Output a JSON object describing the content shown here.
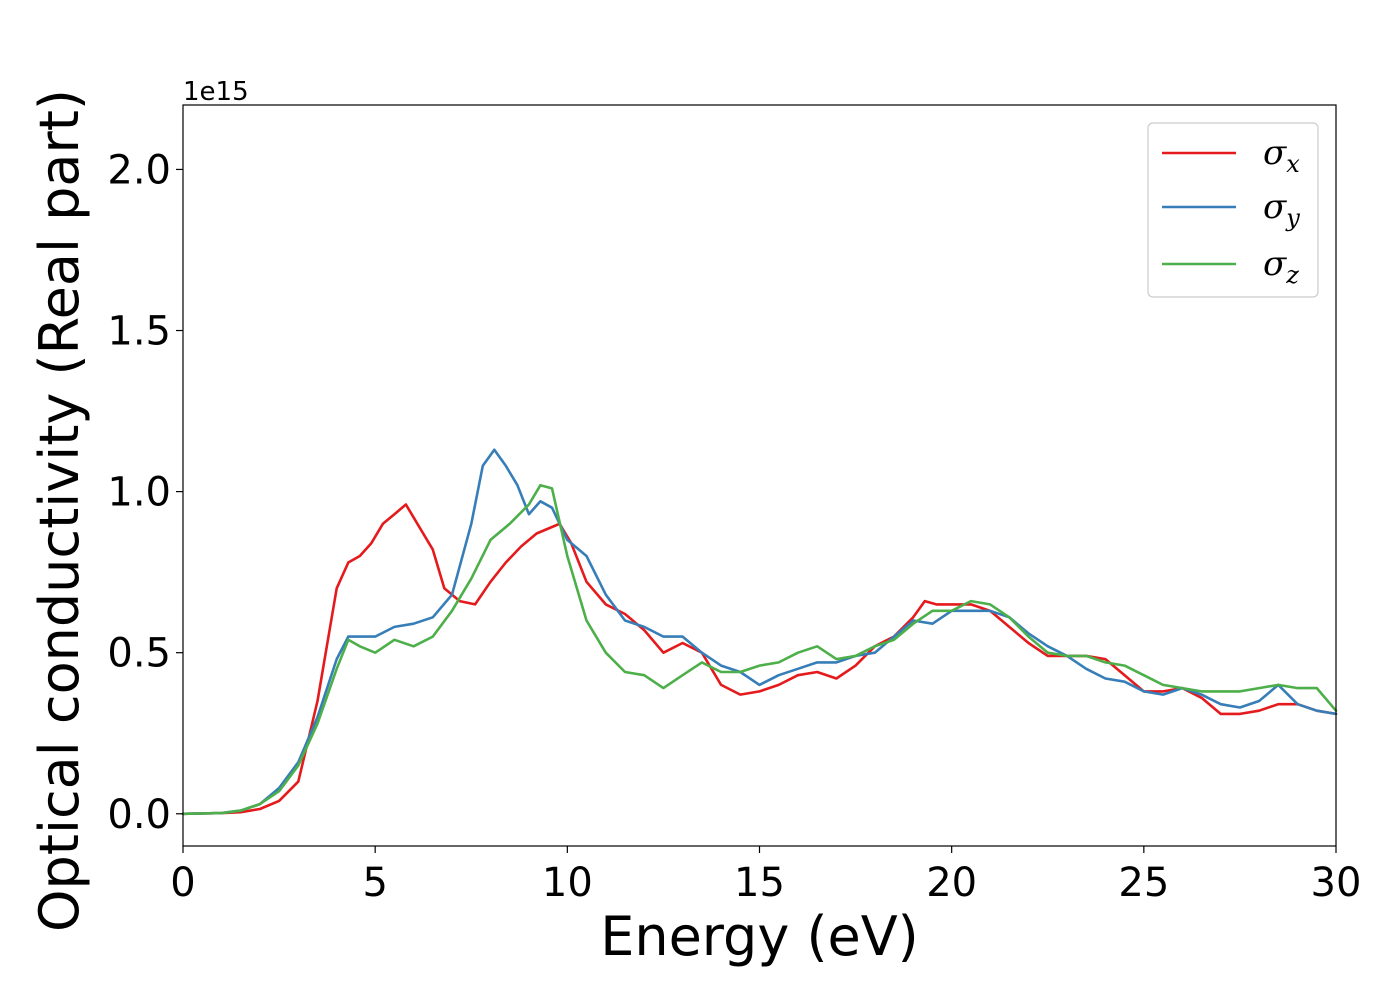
{
  "chart_data": {
    "type": "line",
    "xlabel": "Energy (eV)",
    "ylabel": "Optical conductivity (Real part)",
    "y_offset_label": "1e15",
    "xlim": [
      0,
      30
    ],
    "ylim": [
      -0.1,
      2.2
    ],
    "xticks": [
      0,
      5,
      10,
      15,
      20,
      25,
      30
    ],
    "xtick_labels": [
      "0",
      "5",
      "10",
      "15",
      "20",
      "25",
      "30"
    ],
    "yticks": [
      0.0,
      0.5,
      1.0,
      1.5,
      2.0
    ],
    "ytick_labels": [
      "0.0",
      "0.5",
      "1.0",
      "1.5",
      "2.0"
    ],
    "grid": false,
    "legend_position": "top-right",
    "series": [
      {
        "name": "σx",
        "symbol": "σ",
        "sub": "x",
        "color": "#e41a1c",
        "x": [
          0,
          1,
          1.5,
          2,
          2.5,
          3,
          3.5,
          4,
          4.3,
          4.6,
          4.9,
          5.2,
          5.5,
          5.8,
          6.1,
          6.5,
          6.8,
          7.2,
          7.6,
          8,
          8.4,
          8.8,
          9.2,
          9.6,
          9.8,
          10.1,
          10.5,
          11,
          11.5,
          12,
          12.5,
          13,
          13.5,
          14,
          14.5,
          15,
          15.5,
          16,
          16.5,
          17,
          17.5,
          18,
          18.5,
          19,
          19.3,
          19.6,
          20,
          20.5,
          21,
          21.5,
          22,
          22.5,
          23,
          23.5,
          24,
          24.5,
          25,
          25.5,
          26,
          26.5,
          27,
          27.5,
          28,
          28.5,
          29,
          29.5,
          30
        ],
        "y": [
          0,
          0.002,
          0.005,
          0.015,
          0.04,
          0.1,
          0.35,
          0.7,
          0.78,
          0.8,
          0.84,
          0.9,
          0.93,
          0.96,
          0.9,
          0.82,
          0.7,
          0.66,
          0.65,
          0.72,
          0.78,
          0.83,
          0.87,
          0.89,
          0.9,
          0.84,
          0.72,
          0.65,
          0.62,
          0.57,
          0.5,
          0.53,
          0.5,
          0.4,
          0.37,
          0.38,
          0.4,
          0.43,
          0.44,
          0.42,
          0.46,
          0.52,
          0.55,
          0.61,
          0.66,
          0.65,
          0.65,
          0.65,
          0.63,
          0.58,
          0.53,
          0.49,
          0.49,
          0.49,
          0.48,
          0.43,
          0.38,
          0.38,
          0.39,
          0.36,
          0.31,
          0.31,
          0.32,
          0.34,
          0.34,
          0.32,
          0.31
        ]
      },
      {
        "name": "σy",
        "symbol": "σ",
        "sub": "y",
        "color": "#377eb8",
        "x": [
          0,
          1,
          1.5,
          2,
          2.5,
          3,
          3.5,
          4,
          4.3,
          4.6,
          5,
          5.5,
          6,
          6.5,
          7,
          7.5,
          7.8,
          8.1,
          8.4,
          8.7,
          9,
          9.3,
          9.6,
          10,
          10.5,
          11,
          11.5,
          12,
          12.5,
          13,
          13.5,
          14,
          14.5,
          15,
          15.5,
          16,
          16.5,
          17,
          17.5,
          18,
          18.5,
          19,
          19.5,
          20,
          20.5,
          21,
          21.5,
          22,
          22.5,
          23,
          23.5,
          24,
          24.5,
          25,
          25.5,
          26,
          26.5,
          27,
          27.5,
          28,
          28.5,
          29,
          29.5,
          30
        ],
        "y": [
          0,
          0.002,
          0.01,
          0.03,
          0.08,
          0.16,
          0.3,
          0.48,
          0.55,
          0.55,
          0.55,
          0.58,
          0.59,
          0.61,
          0.68,
          0.9,
          1.08,
          1.13,
          1.08,
          1.02,
          0.93,
          0.97,
          0.95,
          0.85,
          0.8,
          0.68,
          0.6,
          0.58,
          0.55,
          0.55,
          0.5,
          0.46,
          0.44,
          0.4,
          0.43,
          0.45,
          0.47,
          0.47,
          0.49,
          0.5,
          0.55,
          0.6,
          0.59,
          0.63,
          0.63,
          0.63,
          0.61,
          0.56,
          0.52,
          0.49,
          0.45,
          0.42,
          0.41,
          0.38,
          0.37,
          0.39,
          0.37,
          0.34,
          0.33,
          0.35,
          0.4,
          0.34,
          0.32,
          0.31
        ]
      },
      {
        "name": "σz",
        "symbol": "σ",
        "sub": "z",
        "color": "#4daf4a",
        "x": [
          0,
          1,
          1.5,
          2,
          2.5,
          3,
          3.5,
          4,
          4.3,
          4.6,
          5,
          5.5,
          6,
          6.5,
          7,
          7.5,
          8,
          8.5,
          9,
          9.3,
          9.6,
          10,
          10.5,
          11,
          11.5,
          12,
          12.5,
          13,
          13.5,
          14,
          14.5,
          15,
          15.5,
          16,
          16.5,
          17,
          17.5,
          18,
          18.5,
          19,
          19.5,
          20,
          20.5,
          21,
          21.5,
          22,
          22.5,
          23,
          23.5,
          24,
          24.5,
          25,
          25.5,
          26,
          26.5,
          27,
          27.5,
          28,
          28.5,
          29,
          29.5,
          30
        ],
        "y": [
          0,
          0.002,
          0.01,
          0.03,
          0.07,
          0.15,
          0.28,
          0.45,
          0.54,
          0.52,
          0.5,
          0.54,
          0.52,
          0.55,
          0.63,
          0.73,
          0.85,
          0.9,
          0.96,
          1.02,
          1.01,
          0.8,
          0.6,
          0.5,
          0.44,
          0.43,
          0.39,
          0.43,
          0.47,
          0.44,
          0.44,
          0.46,
          0.47,
          0.5,
          0.52,
          0.48,
          0.49,
          0.52,
          0.54,
          0.59,
          0.63,
          0.63,
          0.66,
          0.65,
          0.61,
          0.55,
          0.5,
          0.49,
          0.49,
          0.47,
          0.46,
          0.43,
          0.4,
          0.39,
          0.38,
          0.38,
          0.38,
          0.39,
          0.4,
          0.39,
          0.39,
          0.32
        ]
      }
    ]
  }
}
